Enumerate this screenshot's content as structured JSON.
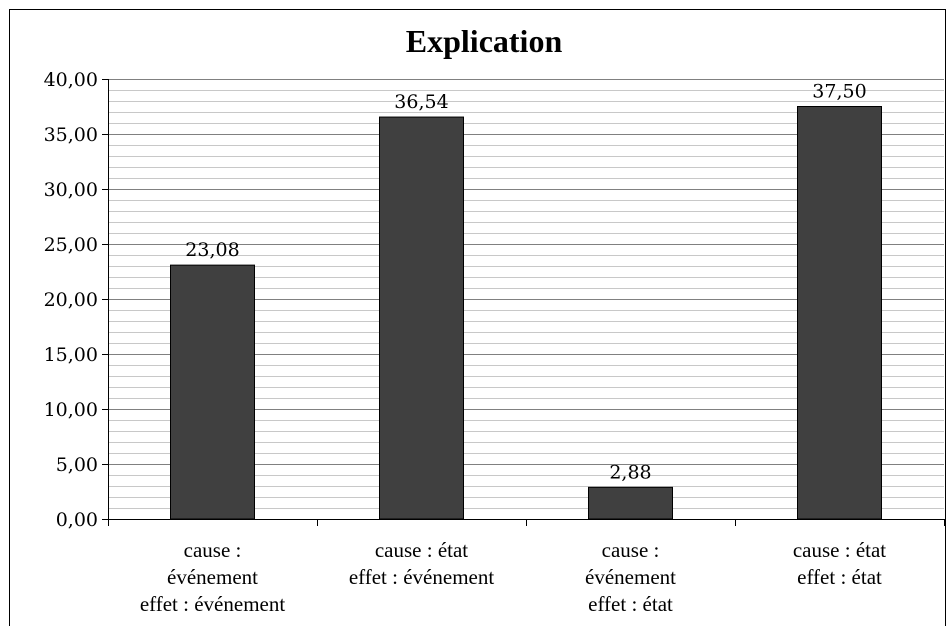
{
  "chart_data": {
    "type": "bar",
    "title": "Explication",
    "categories": [
      [
        "cause :",
        "événement",
        "effet : événement"
      ],
      [
        "cause : état",
        "effet : événement"
      ],
      [
        "cause :",
        "événement",
        "effet : état"
      ],
      [
        "cause : état",
        "effet : état"
      ]
    ],
    "values": [
      23.08,
      36.54,
      2.88,
      37.5
    ],
    "data_labels": [
      "23,08",
      "36,54",
      "2,88",
      "37,50"
    ],
    "ylim": [
      0,
      40
    ],
    "y_ticks": [
      "0,00",
      "5,00",
      "10,00",
      "15,00",
      "20,00",
      "25,00",
      "30,00",
      "35,00",
      "40,00"
    ],
    "xlabel": "",
    "ylabel": "",
    "grid": true,
    "legend": "none",
    "bar_color": "#404040",
    "major_grid_color": "#808080",
    "minor_grid_color": "#c8c8c8"
  }
}
